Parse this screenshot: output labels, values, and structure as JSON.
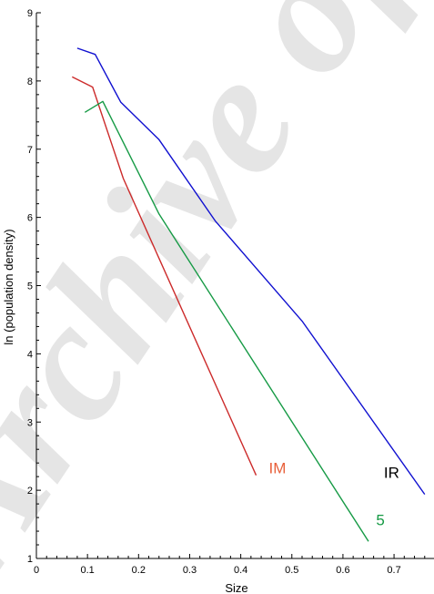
{
  "chart_data": {
    "type": "line",
    "title": "",
    "xlabel": "Size",
    "ylabel": "ln (population density)",
    "xlim": [
      0,
      0.78
    ],
    "ylim": [
      1,
      9
    ],
    "x_ticks": [
      0,
      0.1,
      0.2,
      0.3,
      0.4,
      0.5,
      0.6,
      0.7
    ],
    "x_tick_labels": [
      "0",
      "0.1",
      "0.2",
      "0.3",
      "0.4",
      "0.5",
      "0.6",
      "0.7"
    ],
    "y_ticks": [
      1,
      2,
      3,
      4,
      5,
      6,
      7,
      8,
      9
    ],
    "y_tick_labels": [
      "1",
      "2",
      "3",
      "4",
      "5",
      "6",
      "7",
      "8",
      "9"
    ],
    "grid": false,
    "legend": "none",
    "series": [
      {
        "name": "IM",
        "color": "#cc2a2a",
        "label_color": "#e8603a",
        "points": [
          [
            0.07,
            8.06
          ],
          [
            0.11,
            7.91
          ],
          [
            0.17,
            6.57
          ],
          [
            0.43,
            2.22
          ]
        ]
      },
      {
        "name": "5",
        "color": "#169a45",
        "label_color": "#169a45",
        "points": [
          [
            0.095,
            7.54
          ],
          [
            0.13,
            7.7
          ],
          [
            0.24,
            6.05
          ],
          [
            0.65,
            1.25
          ]
        ]
      },
      {
        "name": "IR",
        "color": "#1010d0",
        "label_color": "#000000",
        "points": [
          [
            0.08,
            8.48
          ],
          [
            0.115,
            8.39
          ],
          [
            0.165,
            7.69
          ],
          [
            0.24,
            7.14
          ],
          [
            0.35,
            5.95
          ],
          [
            0.52,
            4.48
          ],
          [
            0.76,
            1.94
          ]
        ]
      }
    ],
    "annotations": [
      {
        "text": "IM",
        "x": 0.455,
        "y": 2.25,
        "series": "IM"
      },
      {
        "text": "IR",
        "x": 0.68,
        "y": 2.18,
        "series": "IR"
      },
      {
        "text": "5",
        "x": 0.665,
        "y": 1.49,
        "series": "5"
      }
    ]
  },
  "watermark": {
    "text": "Archive of SID",
    "color": "#d0d0d0"
  }
}
